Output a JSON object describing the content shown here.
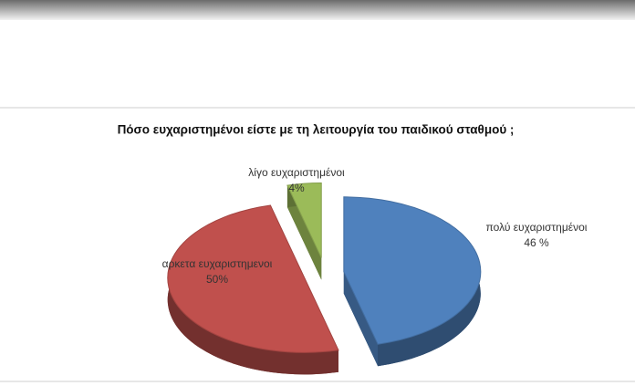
{
  "chart_data": {
    "type": "pie",
    "title": "Πόσο ευχαριστημένοι είστε με τη λειτουργία του παιδικού σταθμού ;",
    "categories": [
      "πολύ ευχαριστημένοι",
      "αρκετα ευχαριστημενοι",
      "λίγο ευχαριστημένοι"
    ],
    "values": [
      46,
      50,
      4
    ],
    "value_labels": [
      "46 %",
      "50%",
      "4%"
    ],
    "colors": [
      "#4f81bd",
      "#c0504d",
      "#9bbb59"
    ]
  }
}
